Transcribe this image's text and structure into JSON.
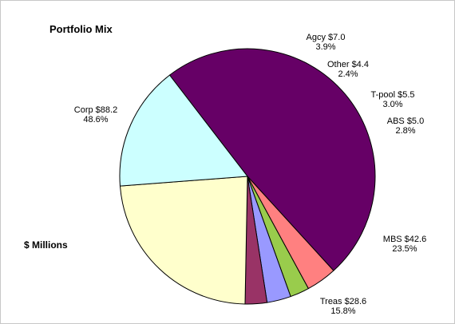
{
  "chart_data": {
    "type": "pie",
    "title": "Portfolio Mix",
    "unit_label": "$ Millions",
    "start_category": "Corp",
    "direction": "clockwise",
    "slices": [
      {
        "name": "Corp",
        "value": 88.2,
        "percent": "48.6%",
        "label": "Corp $88.2",
        "color": "#660066"
      },
      {
        "name": "Agcy",
        "value": 7.0,
        "percent": "3.9%",
        "label": "Agcy $7.0",
        "color": "#ff8080"
      },
      {
        "name": "Other",
        "value": 4.4,
        "percent": "2.4%",
        "label": "Other $4.4",
        "color": "#99cc4c"
      },
      {
        "name": "T-pool",
        "value": 5.5,
        "percent": "3.0%",
        "label": "T-pool $5.5",
        "color": "#9999ff"
      },
      {
        "name": "ABS",
        "value": 5.0,
        "percent": "2.8%",
        "label": "ABS $5.0",
        "color": "#993366"
      },
      {
        "name": "MBS",
        "value": 42.6,
        "percent": "23.5%",
        "label": "MBS $42.6",
        "color": "#ffffcc"
      },
      {
        "name": "Treas",
        "value": 28.6,
        "percent": "15.8%",
        "label": "Treas $28.6",
        "color": "#ccffff"
      }
    ]
  }
}
